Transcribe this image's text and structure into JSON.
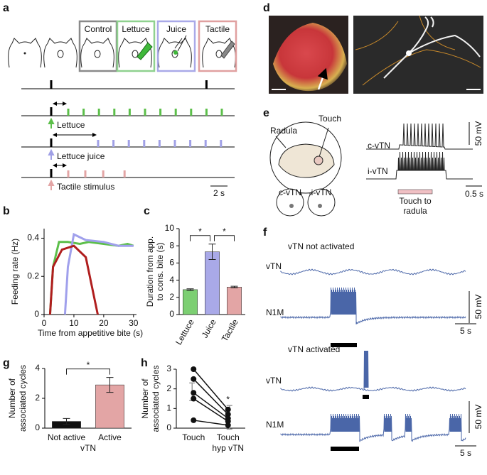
{
  "panel_labels": [
    "a",
    "b",
    "c",
    "d",
    "e",
    "f",
    "g",
    "h"
  ],
  "panel_a": {
    "conditions": [
      "Control",
      "Lettuce",
      "Juice",
      "Tactile"
    ],
    "condition_colors": [
      "#8a8a8a",
      "#8fd18f",
      "#a9a9e8",
      "#e0a0a0"
    ],
    "reference_events": [
      3.5,
      21.7
    ],
    "traces": [
      {
        "label": "Lettuce",
        "color": "#5cbf4a",
        "onset": 3.5,
        "events": [
          5.5,
          7.3,
          9.1,
          10.9,
          12.7,
          14.5,
          16.3,
          18.1,
          19.9,
          21.7,
          23.5
        ]
      },
      {
        "label": "Lettuce juice",
        "color": "#a0a0e6",
        "onset": 3.5,
        "events": [
          9,
          10.8,
          12.6,
          14.4,
          16.2,
          18,
          19.8,
          21.6,
          23.4
        ]
      },
      {
        "label": "Tactile stimulus",
        "color": "#e3a5a5",
        "onset": 3.5,
        "events": [
          5.5,
          7.5,
          9.6,
          12.1
        ]
      }
    ],
    "scale_bar": {
      "value": 2,
      "label": "2 s"
    }
  },
  "panel_e": {
    "radula": "Radula",
    "touch": "Touch",
    "c_vtn": "c-vTN",
    "i_vtn": "i-vTN",
    "traces": [
      "c-vTN",
      "i-vTN"
    ],
    "voltage_scale": "50 mV",
    "time_scale": "0.5 s",
    "stimulus": [
      "Touch to",
      "radula"
    ]
  },
  "panel_f": {
    "sections": [
      {
        "title": "vTN not activated",
        "traces": [
          "vTN",
          "N1M"
        ],
        "voltage_scale": "50 mV",
        "time_scale": "5 s"
      },
      {
        "title": "vTN activated",
        "traces": [
          "vTN",
          "N1M"
        ],
        "voltage_scale": "50 mV",
        "time_scale": "5 s"
      }
    ]
  },
  "chart_data": [
    {
      "type": "line",
      "xlabel": "Time from appetitive bite (s)",
      "ylabel": "Feeding rate (Hz)",
      "xlim": [
        0,
        31
      ],
      "xticks": [
        0,
        10,
        20,
        30
      ],
      "ylim": [
        0,
        0.45
      ],
      "yticks": [
        0,
        0.2,
        0.4
      ],
      "series": [
        {
          "color": "#5cbf4a",
          "x": [
            2,
            3,
            5,
            8,
            12,
            15,
            20,
            25,
            28,
            30
          ],
          "values": [
            0,
            0.25,
            0.38,
            0.38,
            0.37,
            0.38,
            0.37,
            0.36,
            0.37,
            0.36
          ]
        },
        {
          "color": "#a0a0ec",
          "x": [
            7,
            8,
            10,
            14,
            20,
            25,
            30
          ],
          "values": [
            0,
            0.25,
            0.42,
            0.39,
            0.38,
            0.36,
            0.36
          ]
        },
        {
          "color": "#b01e1e",
          "x": [
            2,
            3,
            6,
            10,
            14,
            18
          ],
          "values": [
            0,
            0.25,
            0.34,
            0.36,
            0.3,
            0
          ]
        }
      ]
    },
    {
      "type": "bar",
      "categories": [
        "Lettuce",
        "Juice",
        "Tactile"
      ],
      "values": [
        2.9,
        7.3,
        3.2
      ],
      "errors": [
        0.1,
        0.9,
        0.1
      ],
      "colors": [
        "#7ccf72",
        "#a9a9e8",
        "#e3a5a5"
      ],
      "ylabel": [
        "Duration from app.",
        "to cons. bite (s)"
      ],
      "ylim": [
        0,
        10
      ],
      "yticks": [
        0,
        2,
        4,
        6,
        8,
        10
      ],
      "annotations": [
        "*",
        "*"
      ]
    },
    {
      "type": "bar",
      "categories": [
        "Not active",
        "Active"
      ],
      "xlabel": "vTN",
      "values": [
        0.45,
        2.9
      ],
      "errors": [
        0.2,
        0.5
      ],
      "colors": [
        "#111111",
        "#e3a5a5"
      ],
      "ylabel": [
        "Number of",
        "associated cycles"
      ],
      "ylim": [
        0,
        4
      ],
      "yticks": [
        0,
        2,
        4
      ],
      "annotations": [
        "*"
      ]
    },
    {
      "type": "paired",
      "categories": [
        [
          "Touch"
        ],
        [
          "Touch",
          "hyp vTN"
        ]
      ],
      "ylabel": [
        "Number of",
        "associated cycles"
      ],
      "ylim": [
        0,
        3
      ],
      "yticks": [
        0,
        1,
        2,
        3
      ],
      "series": [
        {
          "values": [
            3,
            0.95
          ]
        },
        {
          "values": [
            2.5,
            0.7
          ]
        },
        {
          "values": [
            1.8,
            0.5
          ]
        },
        {
          "values": [
            1.5,
            0.35
          ]
        },
        {
          "values": [
            0.4,
            0.15
          ]
        }
      ],
      "means": [
        1.85,
        0.55
      ],
      "errors": [
        0.45,
        0.6
      ],
      "annotations": [
        "*"
      ]
    }
  ]
}
